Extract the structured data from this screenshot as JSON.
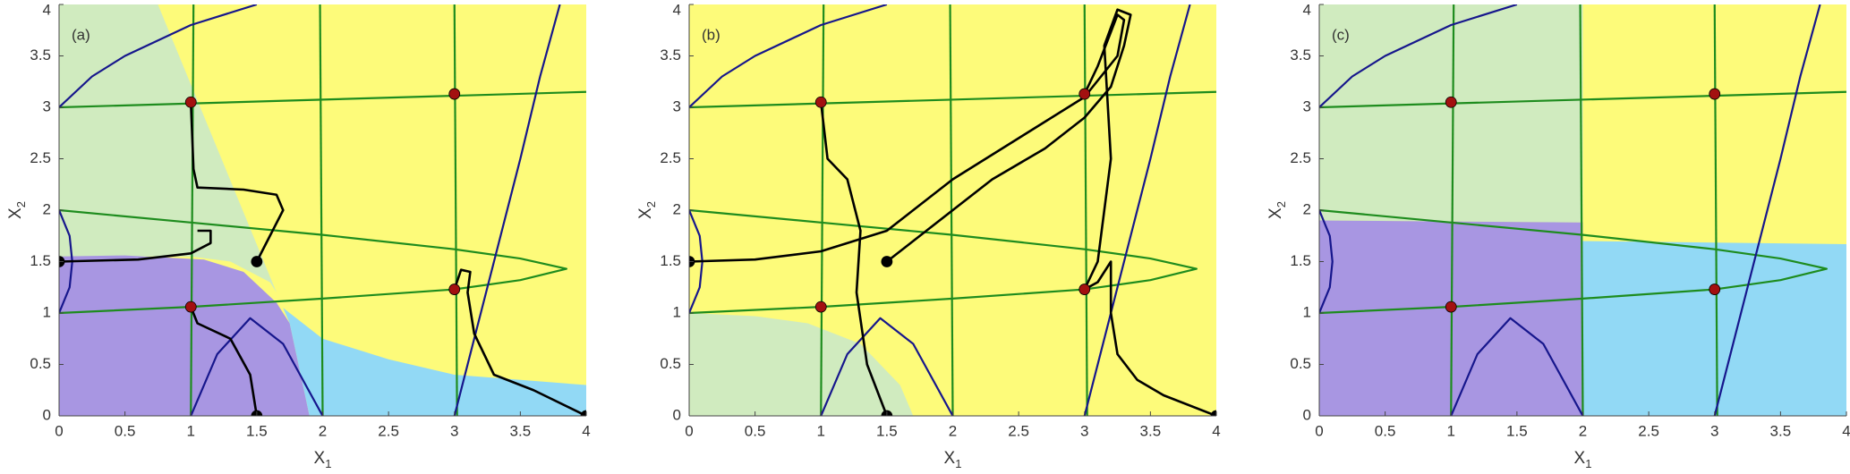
{
  "chart_data": [
    {
      "type": "line",
      "panel_label": "(a)",
      "xlabel": "X",
      "xlabel_sub": "1",
      "ylabel": "X",
      "ylabel_sub": "2",
      "xlim": [
        0,
        4
      ],
      "ylim": [
        0,
        4
      ],
      "xticks": [
        0,
        0.5,
        1,
        1.5,
        2,
        2.5,
        3,
        3.5,
        4
      ],
      "yticks": [
        0,
        0.5,
        1,
        1.5,
        2,
        2.5,
        3,
        3.5,
        4
      ],
      "background": "#fdfb7a",
      "regions": [
        {
          "color": "#d0ebbf",
          "x": [
            0,
            0.75,
            1.65,
            1.6,
            1.3,
            1,
            0
          ],
          "values": [
            4,
            4,
            1.2,
            1.3,
            1.5,
            1.55,
            1.55
          ]
        },
        {
          "color": "#a896e2",
          "x": [
            0,
            1.9,
            1.75,
            1.65,
            1.4,
            1.1,
            0.5,
            0
          ],
          "values": [
            0,
            0,
            0.9,
            1.1,
            1.4,
            1.52,
            1.56,
            1.55
          ]
        },
        {
          "color": "#92d9f5",
          "x": [
            1.9,
            4,
            4,
            3,
            2.5,
            2,
            1.7,
            1.75
          ],
          "values": [
            0,
            0,
            0.3,
            0.4,
            0.55,
            0.75,
            1.05,
            0.9
          ]
        }
      ],
      "series": [
        {
          "color": "#1e8c1e",
          "x": [
            1,
            1.02
          ],
          "values": [
            0,
            4
          ]
        },
        {
          "color": "#1e8c1e",
          "x": [
            2,
            1.98
          ],
          "values": [
            0,
            4
          ]
        },
        {
          "color": "#1e8c1e",
          "x": [
            3.02,
            3
          ],
          "values": [
            0,
            4
          ]
        },
        {
          "color": "#1e8c1e",
          "x": [
            0,
            4
          ],
          "values": [
            3,
            3.15
          ]
        },
        {
          "color": "#1e8c1e",
          "x": [
            0,
            1,
            2,
            3,
            3.5,
            3.85,
            3.5,
            3,
            2,
            1,
            0
          ],
          "values": [
            2,
            1.88,
            1.76,
            1.62,
            1.53,
            1.43,
            1.32,
            1.23,
            1.14,
            1.06,
            1
          ]
        },
        {
          "color": "#16168c",
          "x": [
            0,
            0.25,
            0.5,
            1,
            1.5
          ],
          "values": [
            3,
            3.3,
            3.5,
            3.8,
            4
          ]
        },
        {
          "color": "#16168c",
          "x": [
            0,
            0.08,
            0.1,
            0.08,
            0
          ],
          "values": [
            2,
            1.75,
            1.5,
            1.25,
            1
          ]
        },
        {
          "color": "#16168c",
          "x": [
            1,
            1.2,
            1.45,
            1.7,
            2
          ],
          "values": [
            0,
            0.6,
            0.95,
            0.7,
            0
          ]
        },
        {
          "color": "#16168c",
          "x": [
            3,
            3.2,
            3.4,
            3.5,
            3.65,
            3.8
          ],
          "values": [
            0,
            1,
            2,
            2.5,
            3.3,
            4
          ]
        },
        {
          "color": "#000000",
          "x": [
            0,
            0.6,
            1,
            1.15,
            1.15,
            1.05
          ],
          "values": [
            1.5,
            1.52,
            1.58,
            1.68,
            1.8,
            1.8
          ]
        },
        {
          "color": "#000000",
          "x": [
            1.5,
            1.6,
            1.7,
            1.65,
            1.4,
            1.05,
            1.02,
            1
          ],
          "values": [
            1.5,
            1.75,
            2,
            2.15,
            2.2,
            2.22,
            2.4,
            3.05
          ]
        },
        {
          "color": "#000000",
          "x": [
            1.5,
            1.45,
            1.3,
            1.05,
            1
          ],
          "values": [
            0,
            0.4,
            0.75,
            0.9,
            1.06
          ]
        },
        {
          "color": "#000000",
          "x": [
            4,
            3.6,
            3.3,
            3.15,
            3.1,
            3.12,
            3.05,
            3
          ],
          "values": [
            0,
            0.25,
            0.4,
            0.8,
            1.2,
            1.4,
            1.42,
            1.23
          ]
        }
      ],
      "points": {
        "color": "#a31010",
        "x": [
          1,
          3,
          1,
          3
        ],
        "values": [
          3.05,
          3.13,
          1.06,
          1.23
        ]
      },
      "starts": {
        "color": "#000000",
        "x": [
          0,
          1.5,
          1.5,
          4
        ],
        "values": [
          1.5,
          1.5,
          0,
          0
        ]
      }
    },
    {
      "type": "line",
      "panel_label": "(b)",
      "xlabel": "X",
      "xlabel_sub": "1",
      "ylabel": "X",
      "ylabel_sub": "2",
      "xlim": [
        0,
        4
      ],
      "ylim": [
        0,
        4
      ],
      "xticks": [
        0,
        0.5,
        1,
        1.5,
        2,
        2.5,
        3,
        3.5,
        4
      ],
      "yticks": [
        0,
        0.5,
        1,
        1.5,
        2,
        2.5,
        3,
        3.5,
        4
      ],
      "background": "#fdfb7a",
      "regions": [
        {
          "color": "#d0ebbf",
          "x": [
            0,
            1.7,
            1.6,
            1.3,
            0.9,
            0.5,
            0
          ],
          "values": [
            0,
            0,
            0.3,
            0.7,
            0.9,
            0.97,
            1
          ]
        }
      ],
      "series": [
        {
          "color": "#1e8c1e",
          "x": [
            1,
            1.02
          ],
          "values": [
            0,
            4
          ]
        },
        {
          "color": "#1e8c1e",
          "x": [
            2,
            1.98
          ],
          "values": [
            0,
            4
          ]
        },
        {
          "color": "#1e8c1e",
          "x": [
            3.02,
            3
          ],
          "values": [
            0,
            4
          ]
        },
        {
          "color": "#1e8c1e",
          "x": [
            0,
            4
          ],
          "values": [
            3,
            3.15
          ]
        },
        {
          "color": "#1e8c1e",
          "x": [
            0,
            1,
            2,
            3,
            3.5,
            3.85,
            3.5,
            3,
            2,
            1,
            0
          ],
          "values": [
            2,
            1.88,
            1.76,
            1.62,
            1.53,
            1.43,
            1.32,
            1.23,
            1.14,
            1.06,
            1
          ]
        },
        {
          "color": "#16168c",
          "x": [
            0,
            0.25,
            0.5,
            1,
            1.5
          ],
          "values": [
            3,
            3.3,
            3.5,
            3.8,
            4
          ]
        },
        {
          "color": "#16168c",
          "x": [
            0,
            0.08,
            0.1,
            0.08,
            0
          ],
          "values": [
            2,
            1.75,
            1.5,
            1.25,
            1
          ]
        },
        {
          "color": "#16168c",
          "x": [
            1,
            1.2,
            1.45,
            1.7,
            2
          ],
          "values": [
            0,
            0.6,
            0.95,
            0.7,
            0
          ]
        },
        {
          "color": "#16168c",
          "x": [
            3,
            3.2,
            3.4,
            3.5,
            3.65,
            3.8
          ],
          "values": [
            0,
            1,
            2,
            2.5,
            3.3,
            4
          ]
        },
        {
          "color": "#000000",
          "x": [
            0,
            0.5,
            1,
            1.5,
            2,
            2.5,
            3,
            3.25,
            3.3,
            3.25,
            3.1,
            3
          ],
          "values": [
            1.5,
            1.52,
            1.6,
            1.8,
            2.3,
            2.7,
            3.1,
            3.5,
            3.85,
            3.9,
            3.4,
            3.13
          ]
        },
        {
          "color": "#000000",
          "x": [
            1.5,
            1.8,
            2.3,
            2.7,
            3,
            3.2,
            3.3,
            3.35,
            3.25,
            3.15,
            3.2,
            3.1,
            3
          ],
          "values": [
            1.5,
            1.8,
            2.3,
            2.6,
            2.9,
            3.2,
            3.6,
            3.9,
            3.95,
            3.6,
            2.5,
            1.5,
            1.23
          ]
        },
        {
          "color": "#000000",
          "x": [
            1.5,
            1.35,
            1.27,
            1.3,
            1.2,
            1.05,
            1
          ],
          "values": [
            0,
            0.5,
            1.2,
            1.8,
            2.3,
            2.5,
            3.05
          ]
        },
        {
          "color": "#000000",
          "x": [
            4,
            3.6,
            3.4,
            3.25,
            3.2,
            3.2,
            3.1,
            3
          ],
          "values": [
            0,
            0.2,
            0.35,
            0.6,
            1,
            1.5,
            1.3,
            1.23
          ]
        }
      ],
      "points": {
        "color": "#a31010",
        "x": [
          1,
          3,
          1,
          3
        ],
        "values": [
          3.05,
          3.13,
          1.06,
          1.23
        ]
      },
      "starts": {
        "color": "#000000",
        "x": [
          0,
          1.5,
          1.5,
          4
        ],
        "values": [
          1.5,
          1.5,
          0,
          0
        ]
      }
    },
    {
      "type": "line",
      "panel_label": "(c)",
      "xlabel": "X",
      "xlabel_sub": "1",
      "ylabel": "X",
      "ylabel_sub": "2",
      "xlim": [
        0,
        4
      ],
      "ylim": [
        0,
        4
      ],
      "xticks": [
        0,
        0.5,
        1,
        1.5,
        2,
        2.5,
        3,
        3.5,
        4
      ],
      "yticks": [
        0,
        0.5,
        1,
        1.5,
        2,
        2.5,
        3,
        3.5,
        4
      ],
      "background": "#fdfb7a",
      "regions": [
        {
          "color": "#d0ebbf",
          "x": [
            0,
            2,
            2,
            0
          ],
          "values": [
            4,
            4,
            1.88,
            1.9
          ]
        },
        {
          "color": "#a896e2",
          "x": [
            0,
            2,
            2,
            0
          ],
          "values": [
            0,
            0,
            1.88,
            1.9
          ]
        },
        {
          "color": "#92d9f5",
          "x": [
            2,
            4,
            4,
            2
          ],
          "values": [
            0,
            0,
            1.67,
            1.7
          ]
        }
      ],
      "series": [
        {
          "color": "#1e8c1e",
          "x": [
            1,
            1.02
          ],
          "values": [
            0,
            4
          ]
        },
        {
          "color": "#1e8c1e",
          "x": [
            2,
            1.98
          ],
          "values": [
            0,
            4
          ]
        },
        {
          "color": "#1e8c1e",
          "x": [
            3.02,
            3
          ],
          "values": [
            0,
            4
          ]
        },
        {
          "color": "#1e8c1e",
          "x": [
            0,
            4
          ],
          "values": [
            3,
            3.15
          ]
        },
        {
          "color": "#1e8c1e",
          "x": [
            0,
            1,
            2,
            3,
            3.5,
            3.85,
            3.5,
            3,
            2,
            1,
            0
          ],
          "values": [
            2,
            1.88,
            1.76,
            1.62,
            1.53,
            1.43,
            1.32,
            1.23,
            1.14,
            1.06,
            1
          ]
        },
        {
          "color": "#16168c",
          "x": [
            0,
            0.25,
            0.5,
            1,
            1.5
          ],
          "values": [
            3,
            3.3,
            3.5,
            3.8,
            4
          ]
        },
        {
          "color": "#16168c",
          "x": [
            0,
            0.08,
            0.1,
            0.08,
            0
          ],
          "values": [
            2,
            1.75,
            1.5,
            1.25,
            1
          ]
        },
        {
          "color": "#16168c",
          "x": [
            1,
            1.2,
            1.45,
            1.7,
            2
          ],
          "values": [
            0,
            0.6,
            0.95,
            0.7,
            0
          ]
        },
        {
          "color": "#16168c",
          "x": [
            3,
            3.2,
            3.4,
            3.5,
            3.65,
            3.8
          ],
          "values": [
            0,
            1,
            2,
            2.5,
            3.3,
            4
          ]
        }
      ],
      "points": {
        "color": "#a31010",
        "x": [
          1,
          3,
          1,
          3
        ],
        "values": [
          3.05,
          3.13,
          1.06,
          1.23
        ]
      }
    }
  ]
}
